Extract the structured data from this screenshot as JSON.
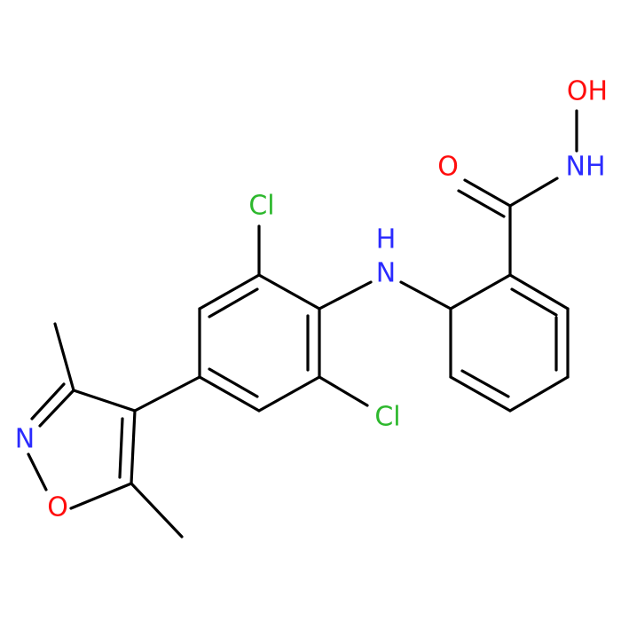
{
  "atoms": {
    "cl_top": "Cl",
    "cl_bottom": "Cl",
    "amine": {
      "n": "N",
      "h": "H"
    },
    "carbonyl_o": "O",
    "hydroxamic_n": "NH",
    "hydroxyl": "OH",
    "isoxazole_n": "N",
    "isoxazole_o": "O"
  }
}
